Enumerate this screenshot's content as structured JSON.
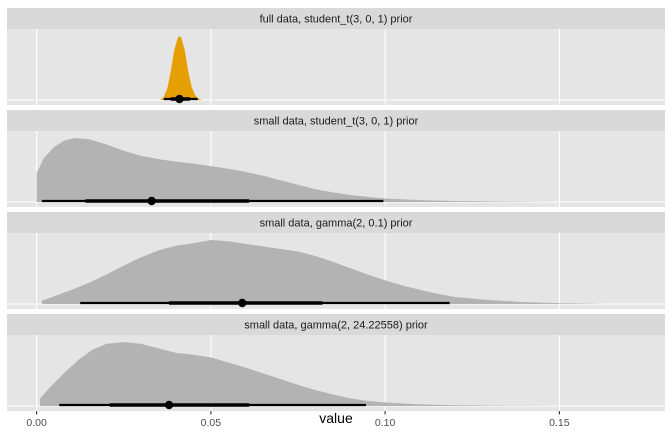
{
  "chart_data": {
    "type": "density",
    "xlabel": "value",
    "xlim": [
      -0.0085,
      0.1803
    ],
    "x_ticks": [
      0.0,
      0.05,
      0.1,
      0.15
    ],
    "x_tick_labels": [
      "0.00",
      "0.05",
      "0.10",
      "0.15"
    ],
    "grid": true,
    "colors": {
      "panel_bg": "#e5e5e5",
      "strip_bg": "#d9d9d9",
      "gridline": "#ffffff",
      "highlight_fill": "#e69f00",
      "default_fill": "#b3b3b3",
      "interval": "#000000"
    },
    "panels": [
      {
        "label": "full data, student_t(3, 0, 1) prior",
        "highlight": true,
        "density": {
          "x": [
            0.0355,
            0.0365,
            0.0375,
            0.0385,
            0.0395,
            0.0405,
            0.041,
            0.0415,
            0.0425,
            0.0435,
            0.0445,
            0.0455,
            0.0465,
            0.0475
          ],
          "y": [
            0.0,
            0.05,
            0.18,
            0.45,
            0.78,
            0.97,
            1.0,
            0.97,
            0.78,
            0.45,
            0.2,
            0.07,
            0.02,
            0.0
          ]
        },
        "point": 0.041,
        "interval_thin": [
          0.0365,
          0.0462
        ],
        "interval_thick": [
          0.0385,
          0.044
        ]
      },
      {
        "label": "small data, student_t(3, 0, 1) prior",
        "highlight": false,
        "density": {
          "x": [
            0.0,
            0.002,
            0.005,
            0.008,
            0.011,
            0.015,
            0.02,
            0.025,
            0.03,
            0.035,
            0.04,
            0.045,
            0.05,
            0.055,
            0.06,
            0.065,
            0.07,
            0.075,
            0.08,
            0.085,
            0.09,
            0.095,
            0.1,
            0.11,
            0.12,
            0.13,
            0.14,
            0.15,
            0.155
          ],
          "y": [
            0.45,
            0.68,
            0.86,
            0.96,
            1.0,
            0.98,
            0.9,
            0.8,
            0.72,
            0.67,
            0.63,
            0.6,
            0.56,
            0.52,
            0.47,
            0.41,
            0.34,
            0.27,
            0.2,
            0.15,
            0.11,
            0.08,
            0.055,
            0.03,
            0.016,
            0.008,
            0.004,
            0.001,
            0.0
          ]
        },
        "point": 0.033,
        "interval_thin": [
          0.0015,
          0.0995
        ],
        "interval_thick": [
          0.014,
          0.061
        ]
      },
      {
        "label": "small data, gamma(2, 0.1) prior",
        "highlight": false,
        "density": {
          "x": [
            0.0015,
            0.005,
            0.01,
            0.015,
            0.02,
            0.025,
            0.03,
            0.035,
            0.04,
            0.045,
            0.05,
            0.055,
            0.06,
            0.065,
            0.07,
            0.075,
            0.08,
            0.085,
            0.09,
            0.095,
            0.1,
            0.105,
            0.11,
            0.115,
            0.12,
            0.13,
            0.14,
            0.15,
            0.163
          ],
          "y": [
            0.05,
            0.12,
            0.22,
            0.33,
            0.46,
            0.6,
            0.73,
            0.84,
            0.91,
            0.95,
            1.0,
            0.98,
            0.94,
            0.9,
            0.86,
            0.82,
            0.75,
            0.66,
            0.56,
            0.46,
            0.37,
            0.29,
            0.22,
            0.16,
            0.11,
            0.06,
            0.03,
            0.012,
            0.0
          ]
        },
        "point": 0.059,
        "interval_thin": [
          0.0125,
          0.1185
        ],
        "interval_thick": [
          0.038,
          0.082
        ]
      },
      {
        "label": "small data, gamma(2, 24.22558) prior",
        "highlight": false,
        "density": {
          "x": [
            0.001,
            0.004,
            0.008,
            0.012,
            0.016,
            0.02,
            0.025,
            0.03,
            0.035,
            0.04,
            0.045,
            0.05,
            0.055,
            0.06,
            0.065,
            0.07,
            0.075,
            0.08,
            0.085,
            0.09,
            0.095,
            0.1,
            0.11,
            0.12,
            0.13,
            0.14,
            0.15,
            0.155
          ],
          "y": [
            0.12,
            0.3,
            0.52,
            0.72,
            0.88,
            0.97,
            1.0,
            0.97,
            0.9,
            0.83,
            0.8,
            0.76,
            0.68,
            0.6,
            0.51,
            0.42,
            0.33,
            0.25,
            0.18,
            0.12,
            0.08,
            0.055,
            0.025,
            0.012,
            0.006,
            0.003,
            0.001,
            0.0
          ]
        },
        "point": 0.038,
        "interval_thin": [
          0.0065,
          0.0945
        ],
        "interval_thick": [
          0.021,
          0.061
        ]
      }
    ]
  }
}
